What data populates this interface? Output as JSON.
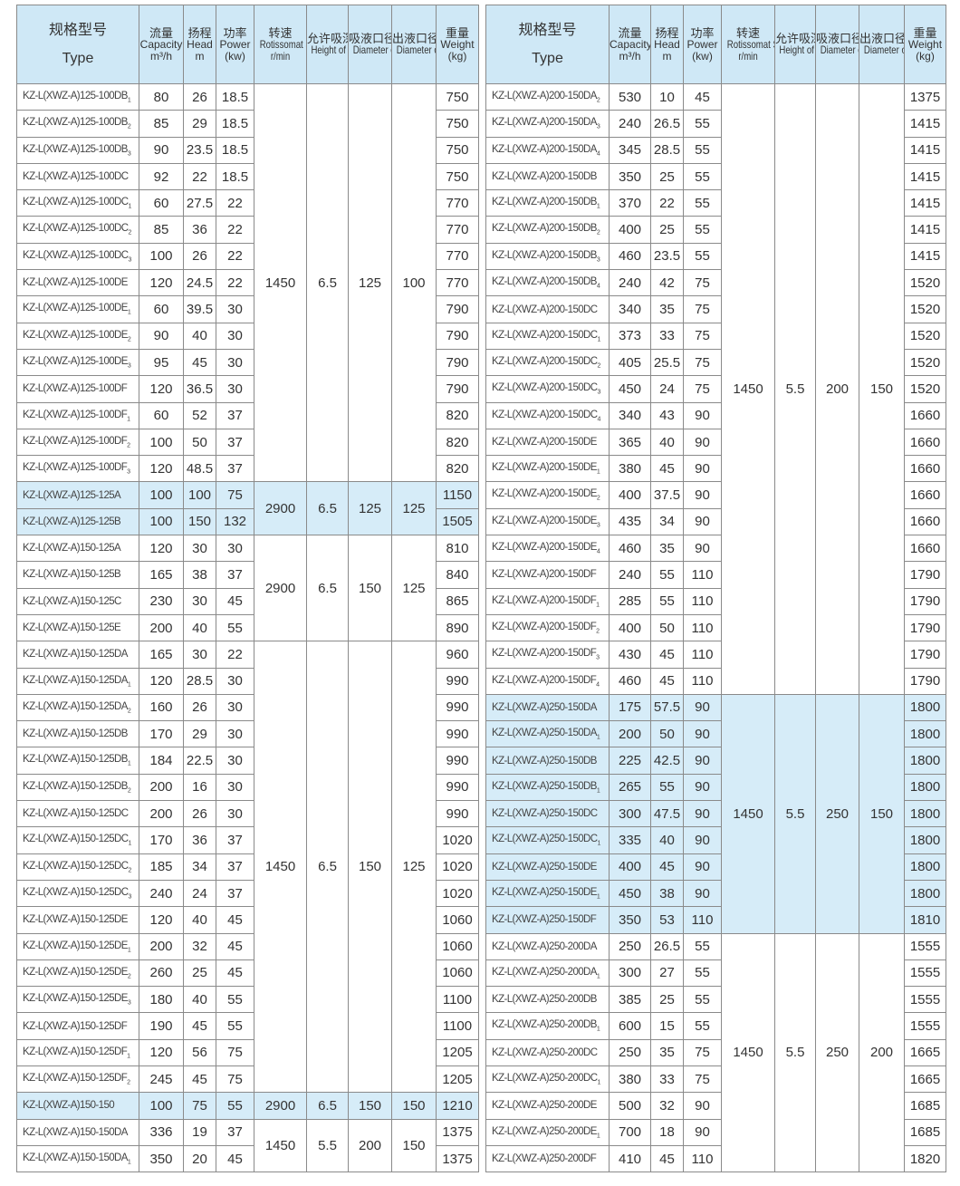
{
  "headers": [
    {
      "zh": "规格型号",
      "en": "Type",
      "unit": ""
    },
    {
      "zh": "流量",
      "en": "Capacity",
      "unit": "m³/h"
    },
    {
      "zh": "扬程",
      "en": "Head",
      "unit": "m"
    },
    {
      "zh": "功率",
      "en": "Power",
      "unit": "(kw)"
    },
    {
      "zh": "转速",
      "en": "Rotissomat Speed",
      "unit": "r/min"
    },
    {
      "zh": "允许吸深",
      "en": "Height of Suciton",
      "unit": ""
    },
    {
      "zh": "吸液口径",
      "en": "Diameter of Inlet",
      "unit": ""
    },
    {
      "zh": "出液口径",
      "en": "Diameter of Outlet",
      "unit": ""
    },
    {
      "zh": "重量",
      "en": "Weight",
      "unit": "(kg)"
    }
  ],
  "colors": {
    "header_bg": "#cfe8f6",
    "highlight_bg": "#d6ecf8",
    "border": "#8a8a8a"
  },
  "tables": [
    {
      "id": "left",
      "groups": [
        {
          "speed": "1450",
          "height": "6.5",
          "inlet": "125",
          "outlet": "100",
          "highlight": false,
          "rows": [
            [
              "KZ-L(XWZ-A)125-100DB",
              "1",
              "80",
              "26",
              "18.5",
              "750"
            ],
            [
              "KZ-L(XWZ-A)125-100DB",
              "2",
              "85",
              "29",
              "18.5",
              "750"
            ],
            [
              "KZ-L(XWZ-A)125-100DB",
              "3",
              "90",
              "23.5",
              "18.5",
              "750"
            ],
            [
              "KZ-L(XWZ-A)125-100DC",
              "",
              "92",
              "22",
              "18.5",
              "750"
            ],
            [
              "KZ-L(XWZ-A)125-100DC",
              "1",
              "60",
              "27.5",
              "22",
              "770"
            ],
            [
              "KZ-L(XWZ-A)125-100DC",
              "2",
              "85",
              "36",
              "22",
              "770"
            ],
            [
              "KZ-L(XWZ-A)125-100DC",
              "3",
              "100",
              "26",
              "22",
              "770"
            ],
            [
              "KZ-L(XWZ-A)125-100DE",
              "",
              "120",
              "24.5",
              "22",
              "770"
            ],
            [
              "KZ-L(XWZ-A)125-100DE",
              "1",
              "60",
              "39.5",
              "30",
              "790"
            ],
            [
              "KZ-L(XWZ-A)125-100DE",
              "2",
              "90",
              "40",
              "30",
              "790"
            ],
            [
              "KZ-L(XWZ-A)125-100DE",
              "3",
              "95",
              "45",
              "30",
              "790"
            ],
            [
              "KZ-L(XWZ-A)125-100DF",
              "",
              "120",
              "36.5",
              "30",
              "790"
            ],
            [
              "KZ-L(XWZ-A)125-100DF",
              "1",
              "60",
              "52",
              "37",
              "820"
            ],
            [
              "KZ-L(XWZ-A)125-100DF",
              "2",
              "100",
              "50",
              "37",
              "820"
            ],
            [
              "KZ-L(XWZ-A)125-100DF",
              "3",
              "120",
              "48.5",
              "37",
              "820"
            ]
          ]
        },
        {
          "speed": "2900",
          "height": "6.5",
          "inlet": "125",
          "outlet": "125",
          "highlight": true,
          "rows": [
            [
              "KZ-L(XWZ-A)125-125A",
              "",
              "100",
              "100",
              "75",
              "1150"
            ],
            [
              "KZ-L(XWZ-A)125-125B",
              "",
              "100",
              "150",
              "132",
              "1505"
            ]
          ]
        },
        {
          "speed": "2900",
          "height": "6.5",
          "inlet": "150",
          "outlet": "125",
          "highlight": false,
          "rows": [
            [
              "KZ-L(XWZ-A)150-125A",
              "",
              "120",
              "30",
              "30",
              "810"
            ],
            [
              "KZ-L(XWZ-A)150-125B",
              "",
              "165",
              "38",
              "37",
              "840"
            ],
            [
              "KZ-L(XWZ-A)150-125C",
              "",
              "230",
              "30",
              "45",
              "865"
            ],
            [
              "KZ-L(XWZ-A)150-125E",
              "",
              "200",
              "40",
              "55",
              "890"
            ]
          ]
        },
        {
          "speed": "1450",
          "height": "6.5",
          "inlet": "150",
          "outlet": "125",
          "highlight": false,
          "rows": [
            [
              "KZ-L(XWZ-A)150-125DA",
              "",
              "165",
              "30",
              "22",
              "960"
            ],
            [
              "KZ-L(XWZ-A)150-125DA",
              "1",
              "120",
              "28.5",
              "30",
              "990"
            ],
            [
              "KZ-L(XWZ-A)150-125DA",
              "2",
              "160",
              "26",
              "30",
              "990"
            ],
            [
              "KZ-L(XWZ-A)150-125DB",
              "",
              "170",
              "29",
              "30",
              "990"
            ],
            [
              "KZ-L(XWZ-A)150-125DB",
              "1",
              "184",
              "22.5",
              "30",
              "990"
            ],
            [
              "KZ-L(XWZ-A)150-125DB",
              "2",
              "200",
              "16",
              "30",
              "990"
            ],
            [
              "KZ-L(XWZ-A)150-125DC",
              "",
              "200",
              "26",
              "30",
              "990"
            ],
            [
              "KZ-L(XWZ-A)150-125DC",
              "1",
              "170",
              "36",
              "37",
              "1020"
            ],
            [
              "KZ-L(XWZ-A)150-125DC",
              "2",
              "185",
              "34",
              "37",
              "1020"
            ],
            [
              "KZ-L(XWZ-A)150-125DC",
              "3",
              "240",
              "24",
              "37",
              "1020"
            ],
            [
              "KZ-L(XWZ-A)150-125DE",
              "",
              "120",
              "40",
              "45",
              "1060"
            ],
            [
              "KZ-L(XWZ-A)150-125DE",
              "1",
              "200",
              "32",
              "45",
              "1060"
            ],
            [
              "KZ-L(XWZ-A)150-125DE",
              "2",
              "260",
              "25",
              "45",
              "1060"
            ],
            [
              "KZ-L(XWZ-A)150-125DE",
              "3",
              "180",
              "40",
              "55",
              "1100"
            ],
            [
              "KZ-L(XWZ-A)150-125DF",
              "",
              "190",
              "45",
              "55",
              "1100"
            ],
            [
              "KZ-L(XWZ-A)150-125DF",
              "1",
              "120",
              "56",
              "75",
              "1205"
            ],
            [
              "KZ-L(XWZ-A)150-125DF",
              "2",
              "245",
              "45",
              "75",
              "1205"
            ]
          ]
        },
        {
          "speed": "2900",
          "height": "6.5",
          "inlet": "150",
          "outlet": "150",
          "highlight": true,
          "rows": [
            [
              "KZ-L(XWZ-A)150-150",
              "",
              "100",
              "75",
              "55",
              "1210"
            ]
          ]
        },
        {
          "speed": "1450",
          "height": "5.5",
          "inlet": "200",
          "outlet": "150",
          "highlight": false,
          "rows": [
            [
              "KZ-L(XWZ-A)150-150DA",
              "",
              "336",
              "19",
              "37",
              "1375"
            ],
            [
              "KZ-L(XWZ-A)150-150DA",
              "1",
              "350",
              "20",
              "45",
              "1375"
            ]
          ]
        }
      ]
    },
    {
      "id": "right",
      "groups": [
        {
          "speed": "1450",
          "height": "5.5",
          "inlet": "200",
          "outlet": "150",
          "highlight": false,
          "rows": [
            [
              "KZ-L(XWZ-A)200-150DA",
              "2",
              "530",
              "10",
              "45",
              "1375"
            ],
            [
              "KZ-L(XWZ-A)200-150DA",
              "3",
              "240",
              "26.5",
              "55",
              "1415"
            ],
            [
              "KZ-L(XWZ-A)200-150DA",
              "4",
              "345",
              "28.5",
              "55",
              "1415"
            ],
            [
              "KZ-L(XWZ-A)200-150DB",
              "",
              "350",
              "25",
              "55",
              "1415"
            ],
            [
              "KZ-L(XWZ-A)200-150DB",
              "1",
              "370",
              "22",
              "55",
              "1415"
            ],
            [
              "KZ-L(XWZ-A)200-150DB",
              "2",
              "400",
              "25",
              "55",
              "1415"
            ],
            [
              "KZ-L(XWZ-A)200-150DB",
              "3",
              "460",
              "23.5",
              "55",
              "1415"
            ],
            [
              "KZ-L(XWZ-A)200-150DB",
              "4",
              "240",
              "42",
              "75",
              "1520"
            ],
            [
              "KZ-L(XWZ-A)200-150DC",
              "",
              "340",
              "35",
              "75",
              "1520"
            ],
            [
              "KZ-L(XWZ-A)200-150DC",
              "1",
              "373",
              "33",
              "75",
              "1520"
            ],
            [
              "KZ-L(XWZ-A)200-150DC",
              "2",
              "405",
              "25.5",
              "75",
              "1520"
            ],
            [
              "KZ-L(XWZ-A)200-150DC",
              "3",
              "450",
              "24",
              "75",
              "1520"
            ],
            [
              "KZ-L(XWZ-A)200-150DC",
              "4",
              "340",
              "43",
              "90",
              "1660"
            ],
            [
              "KZ-L(XWZ-A)200-150DE",
              "",
              "365",
              "40",
              "90",
              "1660"
            ],
            [
              "KZ-L(XWZ-A)200-150DE",
              "1",
              "380",
              "45",
              "90",
              "1660"
            ],
            [
              "KZ-L(XWZ-A)200-150DE",
              "2",
              "400",
              "37.5",
              "90",
              "1660"
            ],
            [
              "KZ-L(XWZ-A)200-150DE",
              "3",
              "435",
              "34",
              "90",
              "1660"
            ],
            [
              "KZ-L(XWZ-A)200-150DE",
              "4",
              "460",
              "35",
              "90",
              "1660"
            ],
            [
              "KZ-L(XWZ-A)200-150DF",
              "",
              "240",
              "55",
              "110",
              "1790"
            ],
            [
              "KZ-L(XWZ-A)200-150DF",
              "1",
              "285",
              "55",
              "110",
              "1790"
            ],
            [
              "KZ-L(XWZ-A)200-150DF",
              "2",
              "400",
              "50",
              "110",
              "1790"
            ],
            [
              "KZ-L(XWZ-A)200-150DF",
              "3",
              "430",
              "45",
              "110",
              "1790"
            ],
            [
              "KZ-L(XWZ-A)200-150DF",
              "4",
              "460",
              "45",
              "110",
              "1790"
            ]
          ]
        },
        {
          "speed": "1450",
          "height": "5.5",
          "inlet": "250",
          "outlet": "150",
          "highlight": true,
          "rows": [
            [
              "KZ-L(XWZ-A)250-150DA",
              "",
              "175",
              "57.5",
              "90",
              "1800"
            ],
            [
              "KZ-L(XWZ-A)250-150DA",
              "1",
              "200",
              "50",
              "90",
              "1800"
            ],
            [
              "KZ-L(XWZ-A)250-150DB",
              "",
              "225",
              "42.5",
              "90",
              "1800"
            ],
            [
              "KZ-L(XWZ-A)250-150DB",
              "1",
              "265",
              "55",
              "90",
              "1800"
            ],
            [
              "KZ-L(XWZ-A)250-150DC",
              "",
              "300",
              "47.5",
              "90",
              "1800"
            ],
            [
              "KZ-L(XWZ-A)250-150DC",
              "1",
              "335",
              "40",
              "90",
              "1800"
            ],
            [
              "KZ-L(XWZ-A)250-150DE",
              "",
              "400",
              "45",
              "90",
              "1800"
            ],
            [
              "KZ-L(XWZ-A)250-150DE",
              "1",
              "450",
              "38",
              "90",
              "1800"
            ],
            [
              "KZ-L(XWZ-A)250-150DF",
              "",
              "350",
              "53",
              "110",
              "1810"
            ]
          ]
        },
        {
          "speed": "1450",
          "height": "5.5",
          "inlet": "250",
          "outlet": "200",
          "highlight": false,
          "rows": [
            [
              "KZ-L(XWZ-A)250-200DA",
              "",
              "250",
              "26.5",
              "55",
              "1555"
            ],
            [
              "KZ-L(XWZ-A)250-200DA",
              "1",
              "300",
              "27",
              "55",
              "1555"
            ],
            [
              "KZ-L(XWZ-A)250-200DB",
              "",
              "385",
              "25",
              "55",
              "1555"
            ],
            [
              "KZ-L(XWZ-A)250-200DB",
              "1",
              "600",
              "15",
              "55",
              "1555"
            ],
            [
              "KZ-L(XWZ-A)250-200DC",
              "",
              "250",
              "35",
              "75",
              "1665"
            ],
            [
              "KZ-L(XWZ-A)250-200DC",
              "1",
              "380",
              "33",
              "75",
              "1665"
            ],
            [
              "KZ-L(XWZ-A)250-200DE",
              "",
              "500",
              "32",
              "90",
              "1685"
            ],
            [
              "KZ-L(XWZ-A)250-200DE",
              "1",
              "700",
              "18",
              "90",
              "1685"
            ],
            [
              "KZ-L(XWZ-A)250-200DF",
              "",
              "410",
              "45",
              "110",
              "1820"
            ]
          ]
        }
      ]
    }
  ]
}
